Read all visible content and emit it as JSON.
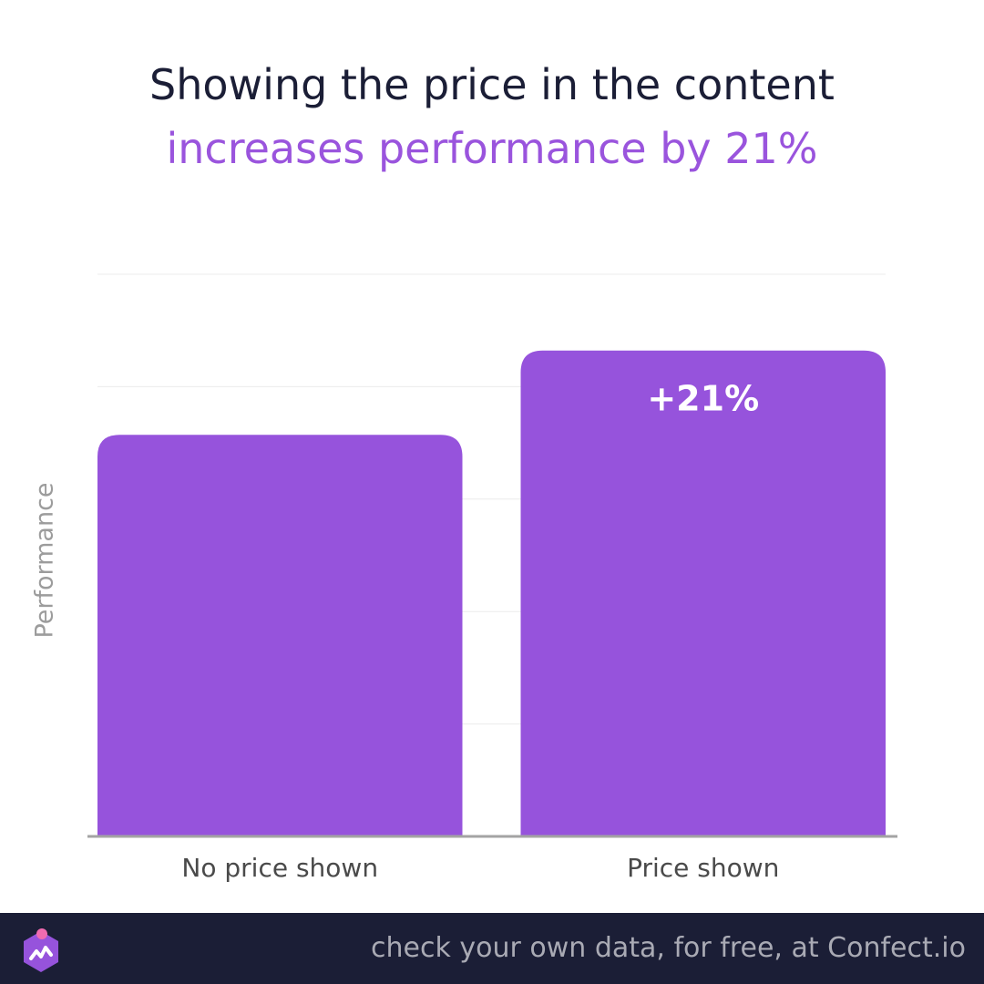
{
  "headline": {
    "line1": "Showing the price in the content",
    "line2": "increases performance by 21%"
  },
  "chart_data": {
    "type": "bar",
    "categories": [
      "No price shown",
      "Price shown"
    ],
    "values": [
      1.0,
      1.21
    ],
    "ylabel": "Performance",
    "ylim": [
      0,
      1.4
    ],
    "grid": true,
    "data_labels": [
      "",
      "+21%"
    ],
    "colors": {
      "bar": "#9653dc",
      "grid": "#ececec",
      "axis": "#a3a3a3",
      "tick_label": "#4a4a4a",
      "data_label": "#ffffff"
    }
  },
  "footer": {
    "cta": "check your own data, for free, at Confect.io",
    "logo_icon": "confect-logo-icon",
    "colors": {
      "background": "#1b1e36",
      "text": "#a9aab4",
      "logo": "#9653dc",
      "logo_dot": "#f06bb0"
    }
  }
}
